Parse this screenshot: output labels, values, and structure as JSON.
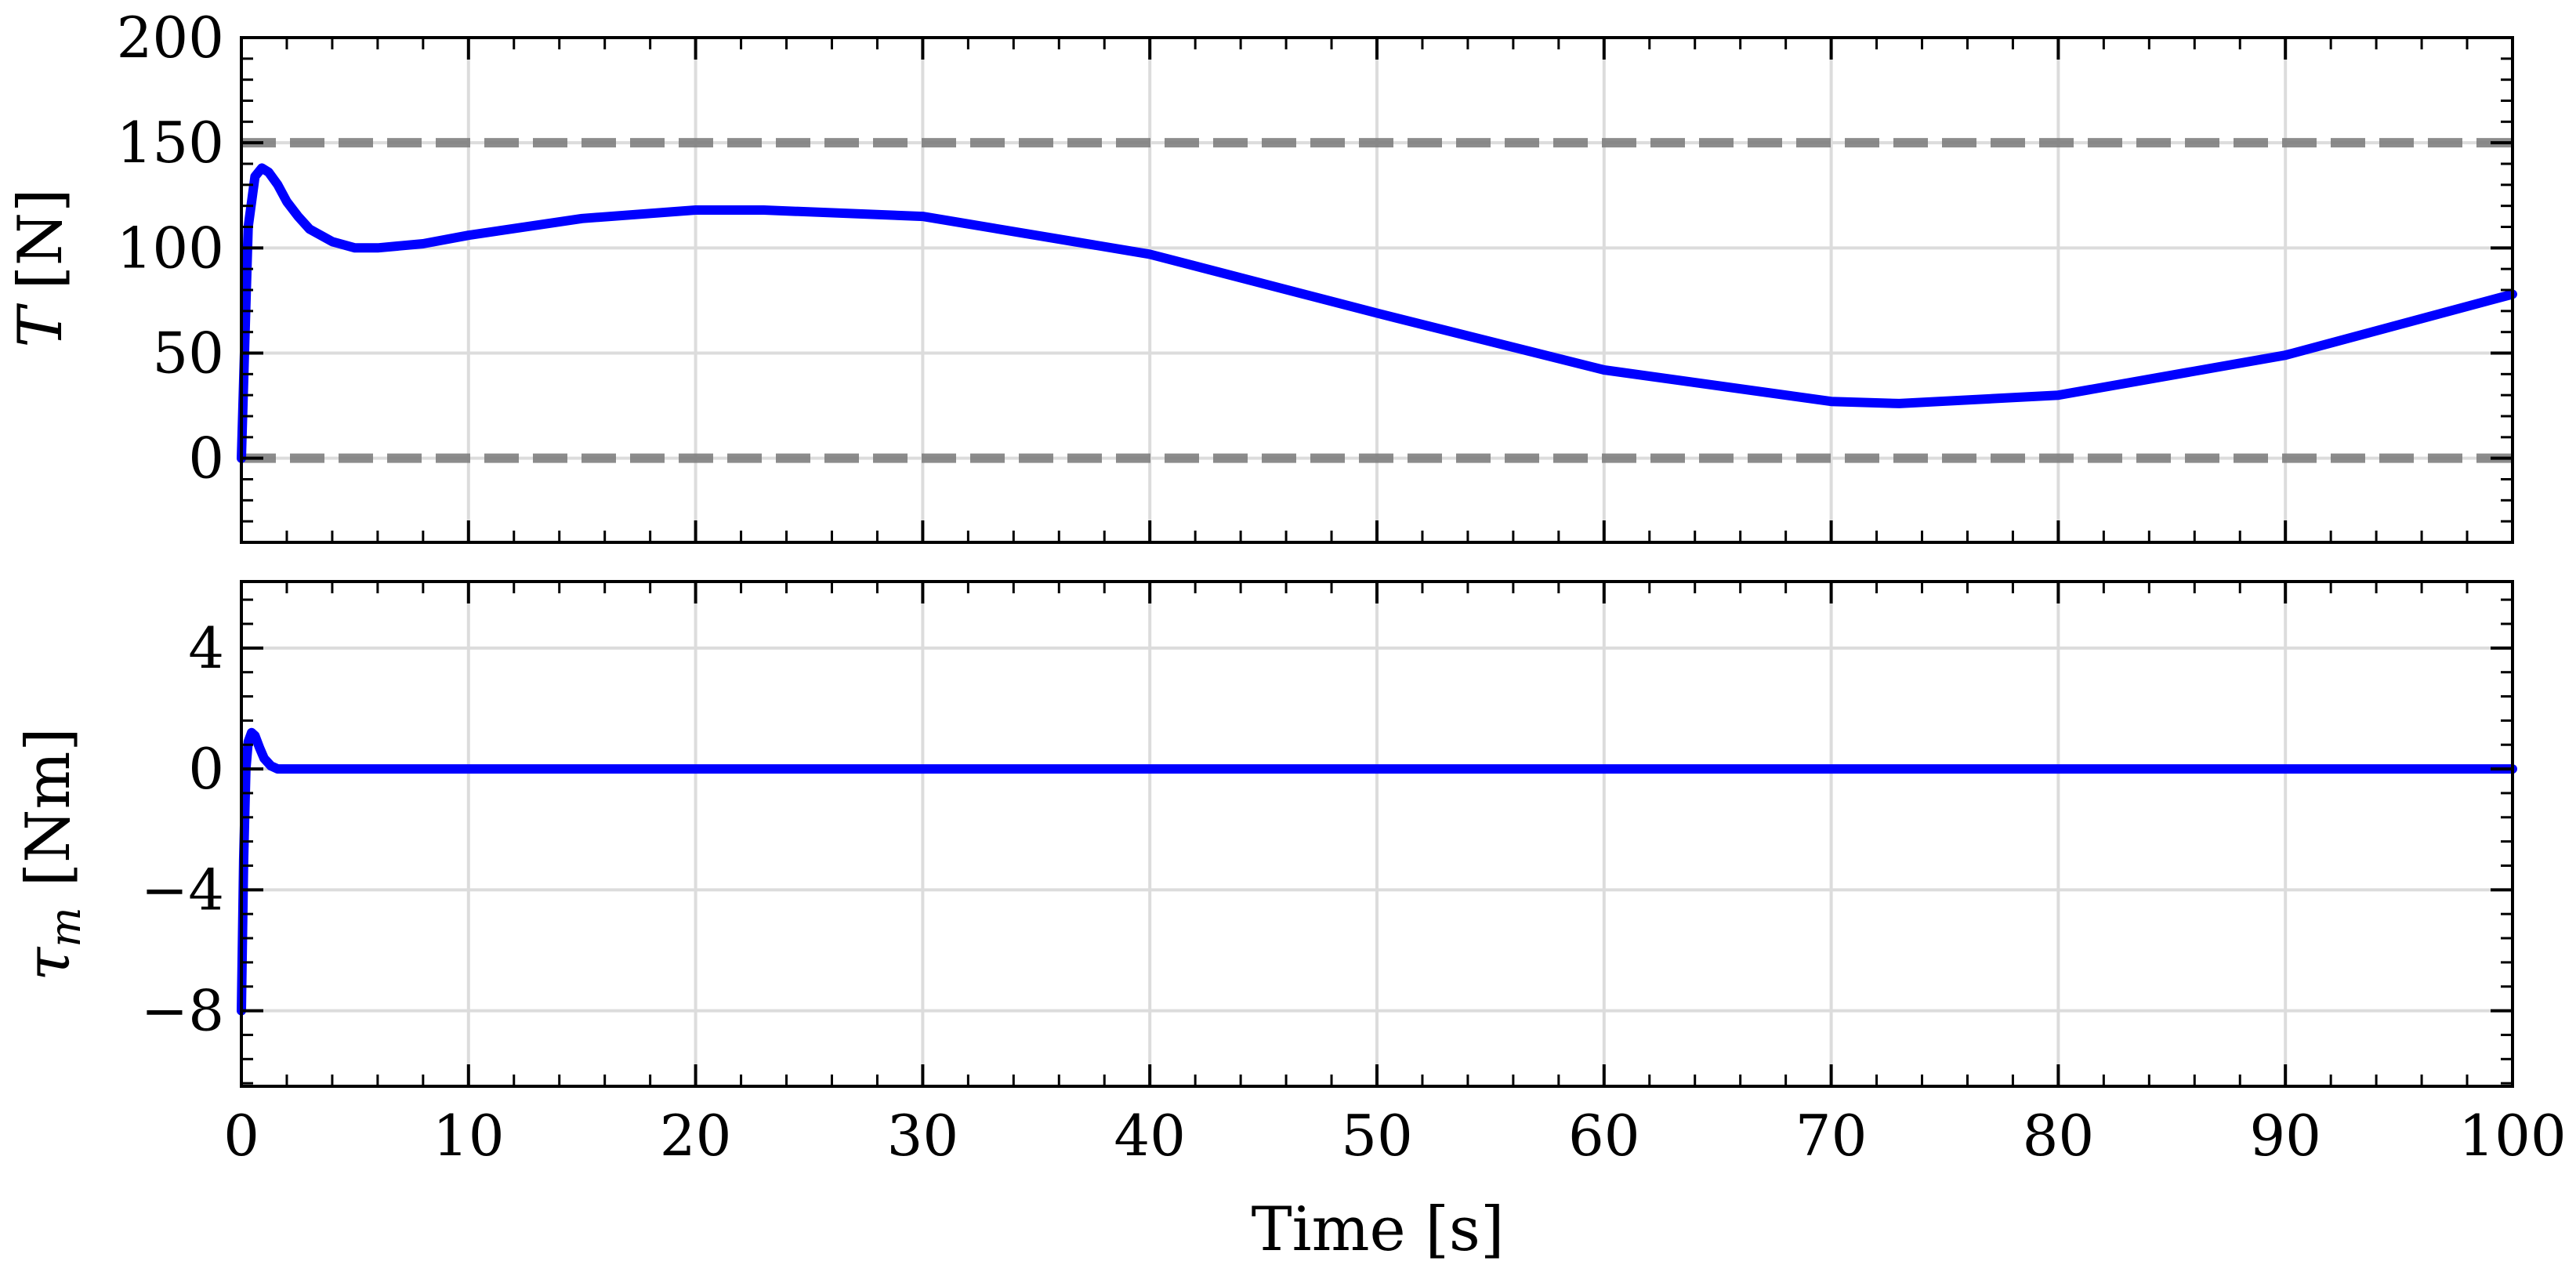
{
  "chart_data": [
    {
      "type": "line",
      "ylabel_symbol": "T",
      "ylabel_unit": "[N]",
      "xlim": [
        0,
        100
      ],
      "ylim": [
        -40,
        200
      ],
      "yticks": [
        0,
        50,
        100,
        150,
        200
      ],
      "ytick_labels": [
        "0",
        "50",
        "100",
        "150",
        "200"
      ],
      "xticks": [
        0,
        10,
        20,
        30,
        40,
        50,
        60,
        70,
        80,
        90,
        100
      ],
      "grid": true,
      "reference_lines": [
        {
          "y": 150,
          "style": "dashed",
          "color": "#808080"
        },
        {
          "y": 0,
          "style": "dashed",
          "color": "#808080"
        }
      ],
      "series": [
        {
          "color": "#0000ff",
          "x": [
            0,
            0.3,
            0.6,
            0.9,
            1.2,
            1.6,
            2,
            2.5,
            3,
            4,
            5,
            6,
            8,
            10,
            15,
            20,
            23,
            30,
            40,
            50,
            60,
            70,
            73,
            80,
            90,
            100
          ],
          "y": [
            0,
            110,
            134,
            138,
            136,
            130,
            122,
            115,
            109,
            103,
            100,
            100,
            102,
            106,
            114,
            118,
            118,
            115,
            97,
            69,
            42,
            27,
            26,
            30,
            49,
            78
          ]
        }
      ]
    },
    {
      "type": "line",
      "ylabel_symbol": "τ",
      "ylabel_subscript": "m",
      "ylabel_unit": "[Nm]",
      "xlabel": "Time [s]",
      "xlim": [
        0,
        100
      ],
      "ylim": [
        -10.5,
        6.2
      ],
      "yticks": [
        4,
        0,
        -4,
        -8
      ],
      "ytick_labels": [
        "4",
        "0",
        "−4",
        "−8"
      ],
      "xticks": [
        0,
        10,
        20,
        30,
        40,
        50,
        60,
        70,
        80,
        90,
        100
      ],
      "xtick_labels": [
        "0",
        "10",
        "20",
        "30",
        "40",
        "50",
        "60",
        "70",
        "80",
        "90",
        "100"
      ],
      "grid": true,
      "series": [
        {
          "color": "#0000ff",
          "x": [
            0,
            0.1,
            0.2,
            0.3,
            0.45,
            0.6,
            0.8,
            1.0,
            1.3,
            1.6,
            2,
            3,
            100
          ],
          "y": [
            -8,
            -3,
            0,
            0.9,
            1.2,
            1.1,
            0.7,
            0.35,
            0.1,
            0,
            0,
            0,
            0
          ]
        }
      ]
    }
  ]
}
